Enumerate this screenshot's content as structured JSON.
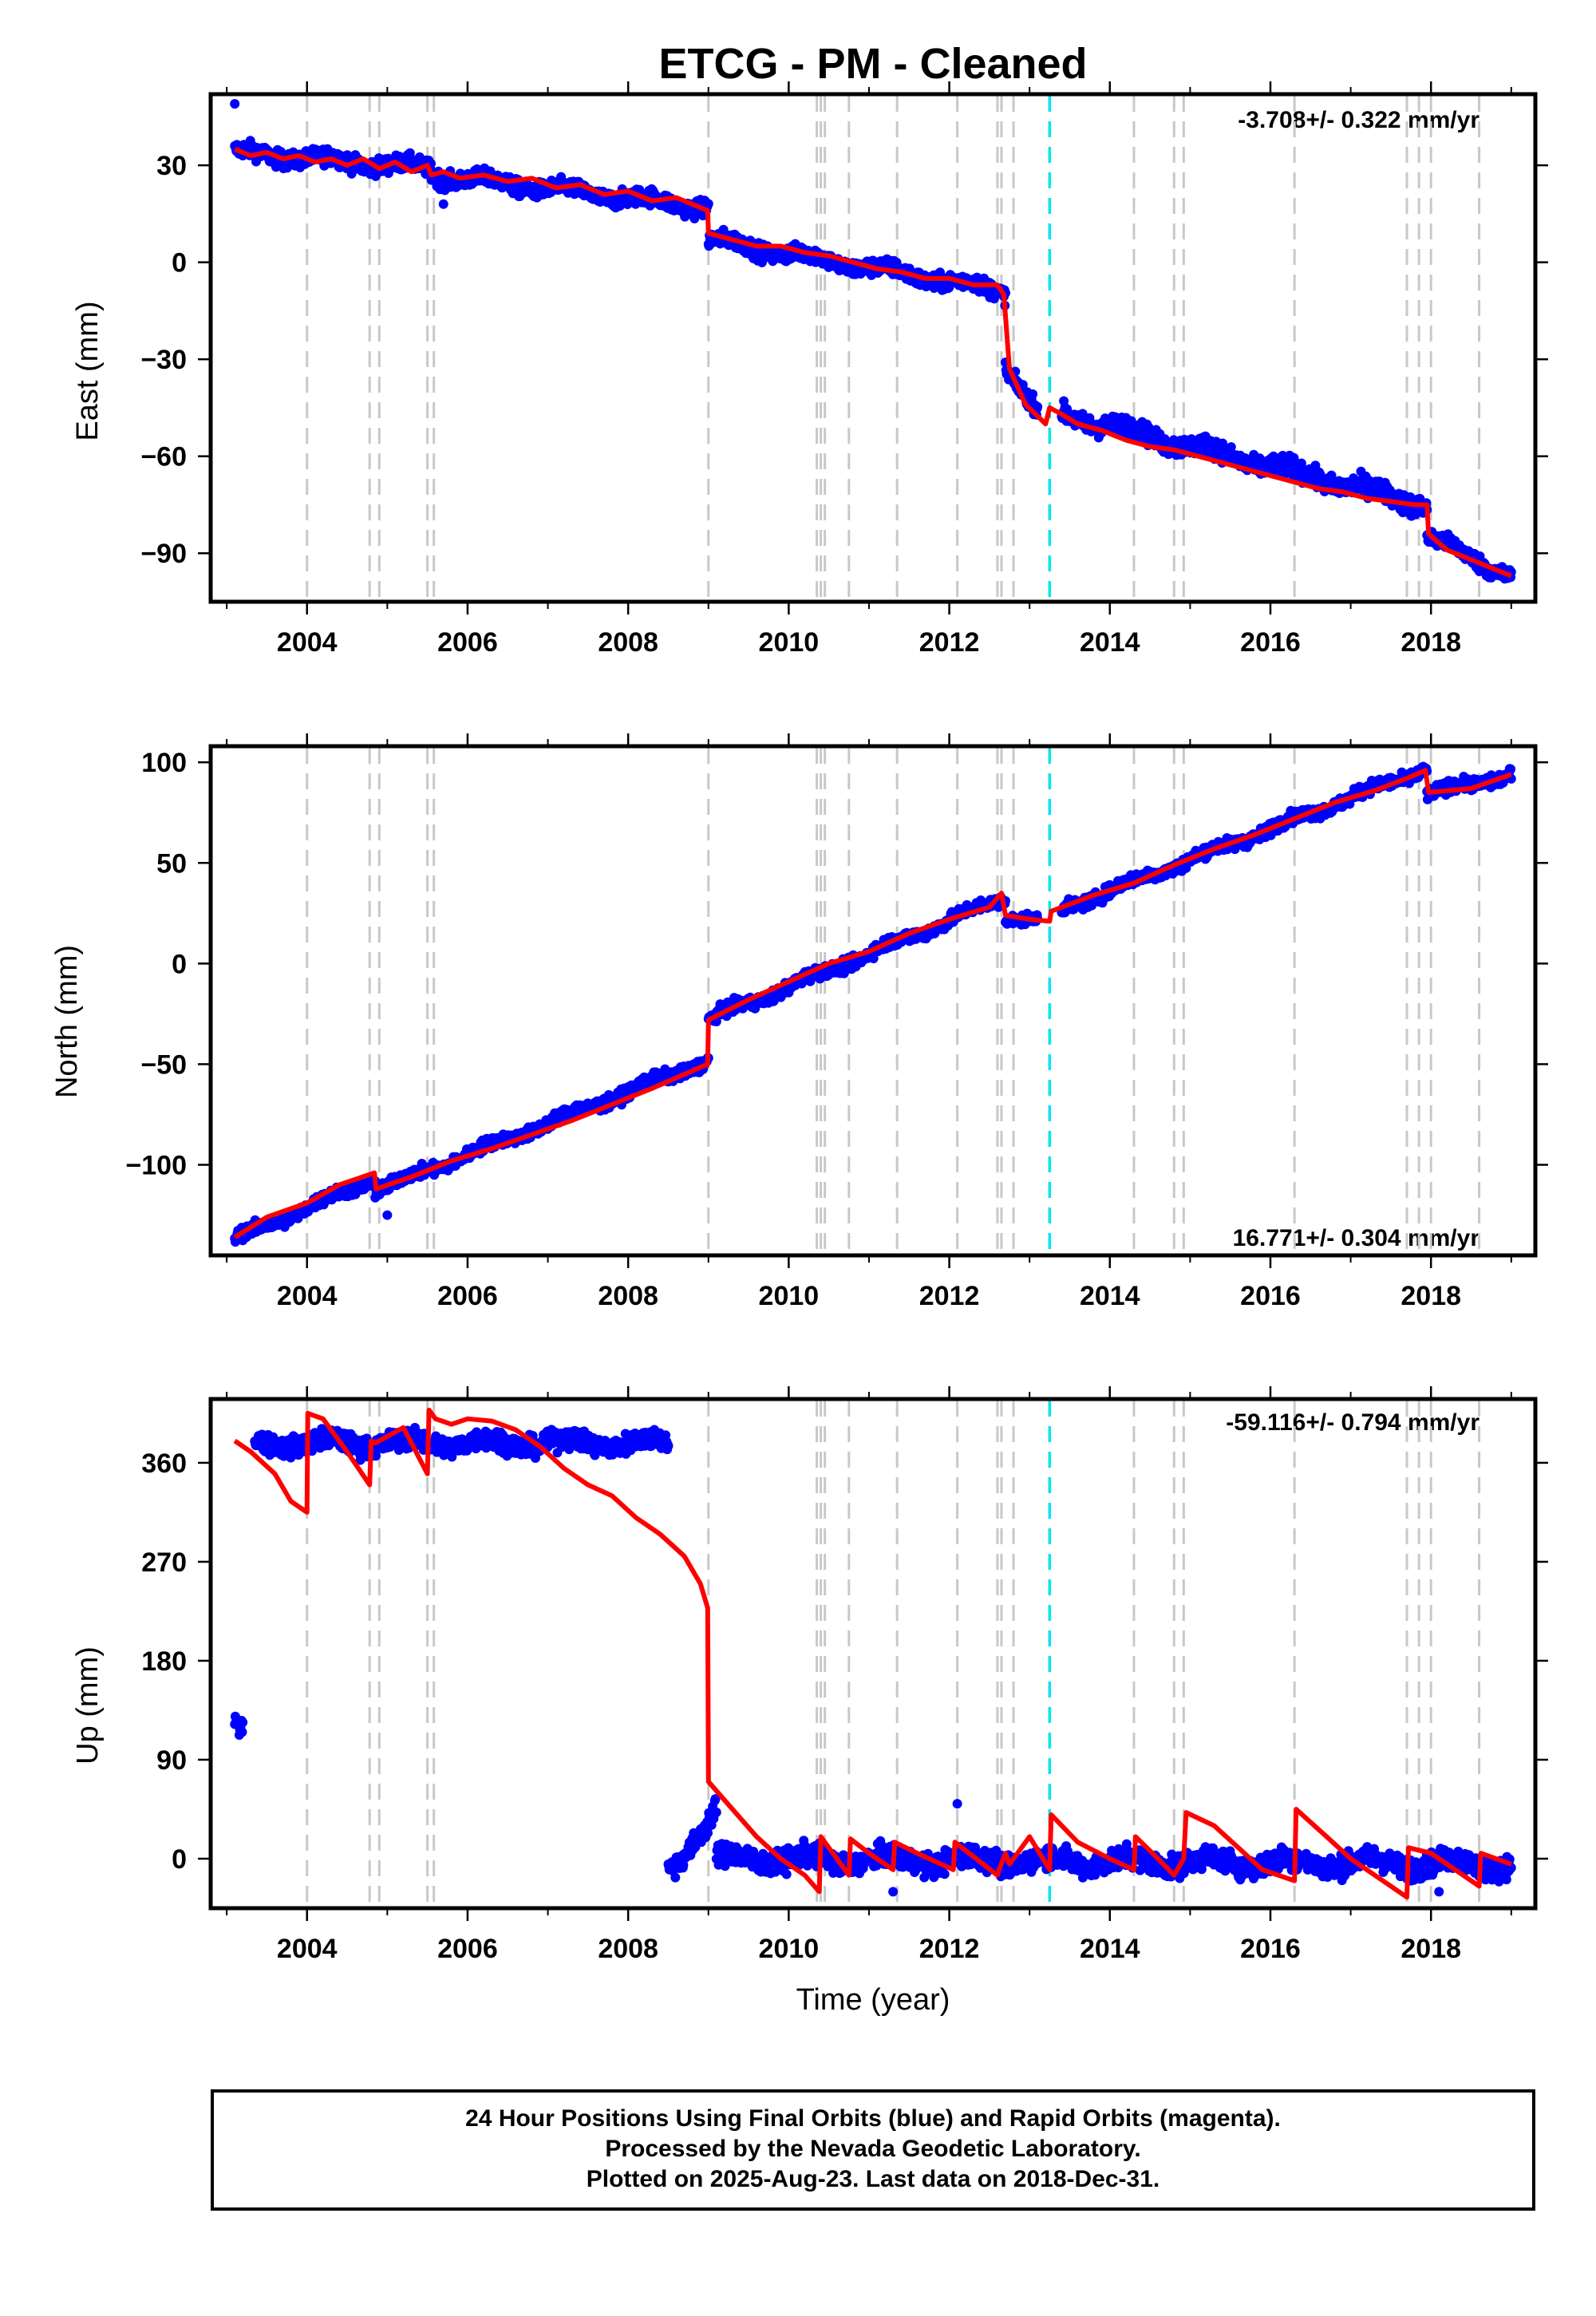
{
  "figure_title": "ETCG  - PM - Cleaned",
  "caption": {
    "line1": "24 Hour Positions Using Final Orbits (blue) and Rapid Orbits (magenta).",
    "line2": "Processed by the Nevada Geodetic Laboratory.",
    "line3": "Plotted on 2025-Aug-23. Last data on 2018-Dec-31."
  },
  "colors": {
    "data_points": "#0000ff",
    "model_line": "#ff0000",
    "event_lines": "#c8c8c8",
    "highlight_event": "#00e5ee"
  },
  "chart_data": [
    {
      "type": "scatter",
      "component": "east",
      "ylabel": "East (mm)",
      "xlabel": "",
      "rate_label": "-3.708+/- 0.322 mm/yr",
      "rate_position": "top-right",
      "xlim": [
        2002.8,
        2019.3
      ],
      "ylim": [
        -105,
        52
      ],
      "x_ticks": [
        2004,
        2006,
        2008,
        2010,
        2012,
        2014,
        2016,
        2018
      ],
      "y_ticks": [
        -90,
        -60,
        -30,
        0,
        30
      ],
      "y_tick_labels": [
        "−90",
        "−60",
        "−30",
        "0",
        "30"
      ],
      "data_segments": [
        {
          "start": 2003.1,
          "end": 2005.55,
          "v0": 34,
          "v1": 29,
          "noise": 2.5
        },
        {
          "start": 2005.55,
          "end": 2009.0,
          "v0": 27,
          "v1": 17,
          "noise": 2.5
        },
        {
          "start": 2009.0,
          "end": 2012.7,
          "v0": 7,
          "v1": -9,
          "noise": 2.5
        },
        {
          "start": 2012.7,
          "end": 2013.1,
          "v0": -32,
          "v1": -46,
          "noise": 2.5
        },
        {
          "start": 2013.4,
          "end": 2017.95,
          "v0": -47,
          "v1": -75,
          "noise": 3
        },
        {
          "start": 2017.95,
          "end": 2019.0,
          "v0": -85,
          "v1": -97,
          "noise": 2.5
        }
      ],
      "outliers": [
        {
          "x": 2003.1,
          "y": 49
        },
        {
          "x": 2005.7,
          "y": 18
        }
      ],
      "model_line": {
        "x": [
          2003.1,
          2003.3,
          2003.5,
          2003.7,
          2003.9,
          2004.1,
          2004.3,
          2004.5,
          2004.7,
          2004.9,
          2005.1,
          2005.3,
          2005.5,
          2005.55,
          2005.7,
          2005.9,
          2006.2,
          2006.5,
          2006.8,
          2007.1,
          2007.4,
          2007.7,
          2008.0,
          2008.3,
          2008.6,
          2008.99,
          2009.0,
          2009.3,
          2009.6,
          2009.9,
          2010.2,
          2010.5,
          2010.8,
          2011.1,
          2011.4,
          2011.7,
          2012.0,
          2012.3,
          2012.6,
          2012.68,
          2012.75,
          2012.95,
          2013.2,
          2013.25,
          2013.4,
          2013.6,
          2013.9,
          2014.2,
          2014.5,
          2014.8,
          2015.1,
          2015.4,
          2015.7,
          2016.0,
          2016.3,
          2016.6,
          2016.9,
          2017.2,
          2017.5,
          2017.8,
          2017.95,
          2017.97,
          2018.2,
          2018.5,
          2018.8,
          2019.0
        ],
        "y": [
          35,
          33,
          34,
          32,
          33,
          31,
          32,
          30,
          32,
          29,
          31,
          28,
          30,
          27,
          28,
          26,
          27,
          25,
          26,
          23,
          24,
          21,
          22,
          19,
          20,
          16,
          9,
          7,
          5,
          5,
          3,
          2,
          0,
          -2,
          -3,
          -5,
          -5,
          -7,
          -7,
          -10,
          -33,
          -44,
          -50,
          -45,
          -47,
          -50,
          -52,
          -55,
          -57,
          -58,
          -60,
          -62,
          -64,
          -66,
          -68,
          -70,
          -71,
          -73,
          -74,
          -75,
          -75,
          -84,
          -89,
          -92,
          -95,
          -97
        ]
      }
    },
    {
      "type": "scatter",
      "component": "north",
      "ylabel": "North (mm)",
      "xlabel": "",
      "rate_label": "16.771+/- 0.304 mm/yr",
      "rate_position": "bottom-right",
      "xlim": [
        2002.8,
        2019.3
      ],
      "ylim": [
        -145,
        108
      ],
      "x_ticks": [
        2004,
        2006,
        2008,
        2010,
        2012,
        2014,
        2016,
        2018
      ],
      "y_ticks": [
        -100,
        -50,
        0,
        50,
        100
      ],
      "y_tick_labels": [
        "−100",
        "−50",
        "0",
        "50",
        "100"
      ],
      "data_segments": [
        {
          "start": 2003.1,
          "end": 2004.85,
          "v0": -137,
          "v1": -107,
          "noise": 3
        },
        {
          "start": 2004.85,
          "end": 2009.0,
          "v0": -113,
          "v1": -48,
          "noise": 3
        },
        {
          "start": 2009.0,
          "end": 2012.7,
          "v0": -28,
          "v1": 33,
          "noise": 3
        },
        {
          "start": 2012.7,
          "end": 2013.1,
          "v0": 23,
          "v1": 22,
          "noise": 2.5
        },
        {
          "start": 2013.4,
          "end": 2017.95,
          "v0": 27,
          "v1": 97,
          "noise": 3
        },
        {
          "start": 2017.95,
          "end": 2019.0,
          "v0": 84,
          "v1": 94,
          "noise": 3
        }
      ],
      "outliers": [
        {
          "x": 2005.0,
          "y": -125
        }
      ],
      "model_line": {
        "x": [
          2003.1,
          2003.5,
          2004.0,
          2004.4,
          2004.84,
          2004.86,
          2005.3,
          2005.8,
          2006.3,
          2006.8,
          2007.3,
          2007.8,
          2008.3,
          2008.99,
          2009.0,
          2009.5,
          2010.0,
          2010.5,
          2011.0,
          2011.5,
          2012.0,
          2012.5,
          2012.65,
          2012.7,
          2013.0,
          2013.25,
          2013.27,
          2013.8,
          2014.3,
          2014.8,
          2015.3,
          2015.8,
          2016.3,
          2016.8,
          2017.3,
          2017.7,
          2017.93,
          2017.97,
          2018.5,
          2019.0
        ],
        "y": [
          -136,
          -126,
          -119,
          -110,
          -104,
          -112,
          -106,
          -98,
          -92,
          -85,
          -78,
          -70,
          -62,
          -50,
          -28,
          -18,
          -9,
          0,
          6,
          15,
          22,
          28,
          35,
          24,
          22,
          21,
          26,
          34,
          40,
          49,
          57,
          64,
          72,
          80,
          86,
          92,
          96,
          85,
          87,
          94
        ]
      }
    },
    {
      "type": "scatter",
      "component": "up",
      "ylabel": "Up (mm)",
      "xlabel": "Time (year)",
      "rate_label": "-59.116+/- 0.794 mm/yr",
      "rate_position": "top-right",
      "xlim": [
        2002.8,
        2019.3
      ],
      "ylim": [
        -45,
        418
      ],
      "x_ticks": [
        2004,
        2006,
        2008,
        2010,
        2012,
        2014,
        2016,
        2018
      ],
      "y_ticks": [
        0,
        90,
        180,
        270,
        360
      ],
      "y_tick_labels": [
        "0",
        "90",
        "180",
        "270",
        "360"
      ],
      "data_segments": [
        {
          "start": 2003.1,
          "end": 2003.2,
          "v0": 120,
          "v1": 118,
          "noise": 8
        },
        {
          "start": 2003.35,
          "end": 2008.5,
          "v0": 378,
          "v1": 378,
          "noise": 9
        },
        {
          "start": 2008.5,
          "end": 2009.1,
          "v0": -10,
          "v1": 42,
          "noise": 10
        },
        {
          "start": 2009.1,
          "end": 2019.0,
          "v0": 0,
          "v1": -5,
          "noise": 10
        }
      ],
      "outliers": [
        {
          "x": 2012.1,
          "y": 50
        },
        {
          "x": 2011.3,
          "y": -30
        },
        {
          "x": 2018.1,
          "y": -30
        }
      ],
      "model_line": {
        "x": [
          2003.1,
          2003.3,
          2003.6,
          2003.8,
          2004.0,
          2004.01,
          2004.2,
          2004.5,
          2004.78,
          2004.8,
          2004.85,
          2005.2,
          2005.5,
          2005.52,
          2005.6,
          2005.8,
          2006.0,
          2006.3,
          2006.6,
          2006.9,
          2007.2,
          2007.5,
          2007.8,
          2008.1,
          2008.4,
          2008.7,
          2008.9,
          2008.99,
          2009.0,
          2009.3,
          2009.6,
          2009.9,
          2010.2,
          2010.38,
          2010.4,
          2010.6,
          2010.75,
          2010.77,
          2011.0,
          2011.3,
          2011.32,
          2011.6,
          2012.05,
          2012.07,
          2012.6,
          2012.62,
          2012.7,
          2012.75,
          2013.0,
          2013.25,
          2013.27,
          2013.6,
          2014.0,
          2014.3,
          2014.32,
          2014.6,
          2014.8,
          2014.92,
          2014.95,
          2015.3,
          2015.6,
          2015.9,
          2016.3,
          2016.32,
          2016.7,
          2017.0,
          2017.7,
          2017.72,
          2018.0,
          2018.3,
          2018.6,
          2018.62,
          2019.0
        ],
        "y": [
          380,
          370,
          350,
          325,
          315,
          405,
          400,
          370,
          340,
          380,
          378,
          392,
          350,
          408,
          400,
          395,
          400,
          398,
          390,
          375,
          355,
          340,
          330,
          310,
          295,
          275,
          250,
          228,
          70,
          45,
          20,
          0,
          -15,
          -30,
          20,
          0,
          -15,
          18,
          5,
          -10,
          15,
          5,
          -10,
          15,
          -15,
          -10,
          5,
          -5,
          20,
          -10,
          40,
          15,
          0,
          -10,
          20,
          0,
          -15,
          0,
          42,
          30,
          10,
          -10,
          -20,
          45,
          20,
          0,
          -35,
          10,
          5,
          -10,
          -25,
          5,
          -5
        ]
      }
    }
  ],
  "event_lines": {
    "gray": [
      2004.0,
      2004.78,
      2004.9,
      2005.5,
      2005.58,
      2009.0,
      2010.35,
      2010.4,
      2010.45,
      2010.75,
      2011.35,
      2012.1,
      2012.6,
      2012.65,
      2012.8,
      2014.3,
      2014.8,
      2014.92,
      2016.3,
      2017.7,
      2017.85,
      2018.0,
      2018.6
    ],
    "cyan": [
      2013.25
    ]
  },
  "x_tick_labels": [
    "2004",
    "2006",
    "2008",
    "2010",
    "2012",
    "2014",
    "2016",
    "2018"
  ]
}
